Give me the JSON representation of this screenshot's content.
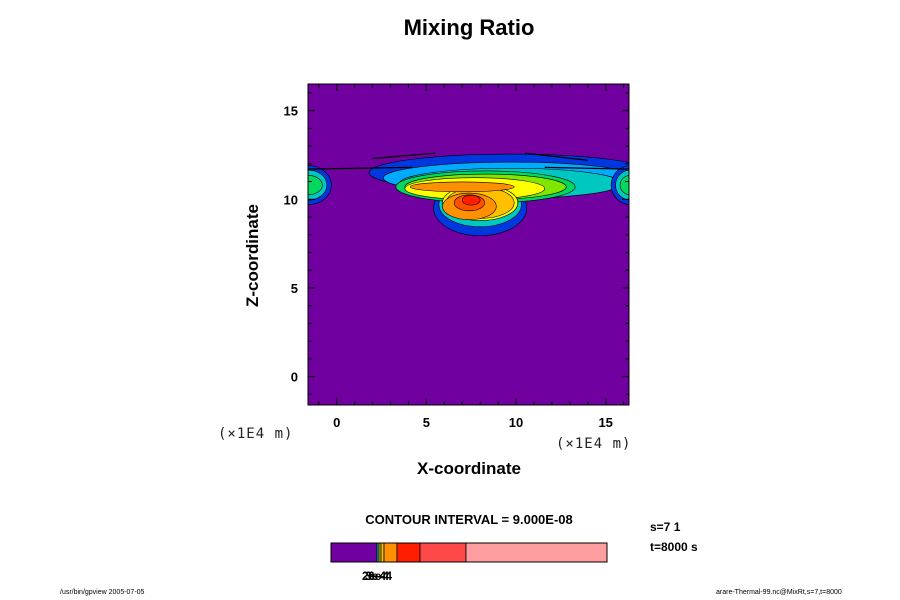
{
  "chart_data": {
    "type": "heatmap",
    "title": "Mixing Ratio",
    "xlabel": "X-coordinate",
    "ylabel": "Z-coordinate",
    "x_unit": "(×1E4 m)",
    "y_unit": "(×1E4 m)",
    "xlim": [
      -1.6,
      16.3
    ],
    "ylim": [
      -1.6,
      16.5
    ],
    "x_ticks": [
      0,
      5,
      10,
      15
    ],
    "y_ticks": [
      0,
      5,
      10,
      15
    ],
    "x_tick_labels": [
      "0",
      "5",
      "10",
      "15"
    ],
    "y_tick_labels": [
      "0",
      "5",
      "10",
      "15"
    ],
    "contour_interval": "CONTOUR INTERVAL = 9.000E-08",
    "colorbar_labels": [
      "2e-4",
      "3e-4",
      "6e-4"
    ],
    "colorbar_colors": [
      "#7000a0",
      "#00c8c0",
      "#ffc000",
      "#ff9000",
      "#ff1f00",
      "#ff4848",
      "#ff9ea0"
    ],
    "background_color": "#7000a0",
    "contour_colors": [
      "#0038e0",
      "#00aaff",
      "#00c8c0",
      "#00d860",
      "#80e600",
      "#ffff00",
      "#ffc000",
      "#ff9000",
      "#ff5000",
      "#ff1f00"
    ],
    "grid": false
  },
  "annotations": {
    "step": "s=7 1",
    "time": "t=8000 s"
  },
  "footer": {
    "left": "/usr/bin/gpview 2005-07-05",
    "right": "arare-Thermal-99.nc@MixRt,s=7,t=8000"
  }
}
